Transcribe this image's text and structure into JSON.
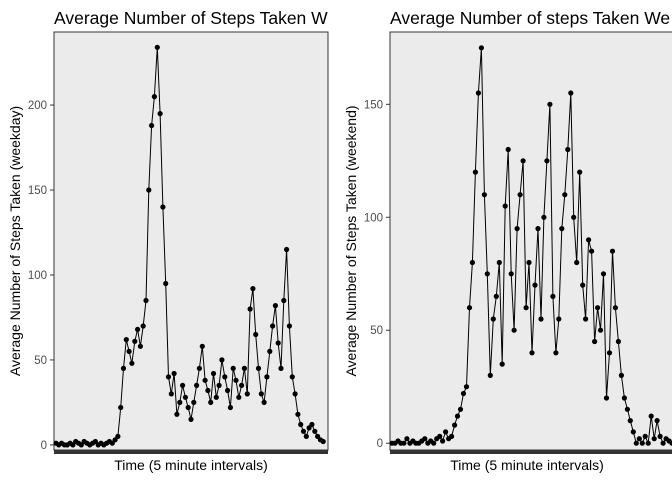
{
  "chart_data": [
    {
      "type": "line",
      "title": "Average Number of Steps Taken W",
      "xlabel": "Time (5 minute intervals)",
      "ylabel": "Average Number of Steps Taken (weekday)",
      "ylim": [
        -3,
        243
      ],
      "yticks": [
        0,
        50,
        100,
        150,
        200
      ],
      "xlim": [
        0,
        288
      ],
      "grid": false,
      "markers": true,
      "series": [
        {
          "x": [
            0,
            3,
            6,
            9,
            12,
            15,
            18,
            21,
            24,
            27,
            30,
            33,
            36,
            39,
            42,
            45,
            48,
            51,
            54,
            57,
            60,
            63,
            66,
            69,
            72,
            75,
            78,
            81,
            84,
            87,
            90,
            93,
            96,
            99,
            102,
            105,
            108,
            111,
            114,
            117,
            120,
            123,
            126,
            129,
            132,
            135,
            138,
            141,
            144,
            147,
            150,
            153,
            156,
            159,
            162,
            165,
            168,
            171,
            174,
            177,
            180,
            183,
            186,
            189,
            192,
            195,
            198,
            201,
            204,
            207,
            210,
            213,
            216,
            219,
            222,
            225,
            228,
            231,
            234,
            237,
            240,
            243,
            246,
            249,
            252,
            255,
            258,
            261,
            264,
            267,
            270,
            273,
            276,
            279,
            282,
            285
          ],
          "values": [
            1,
            0,
            1,
            0,
            0,
            1,
            0,
            2,
            1,
            0,
            2,
            1,
            0,
            1,
            2,
            0,
            1,
            0,
            1,
            2,
            1,
            3,
            5,
            22,
            45,
            62,
            55,
            48,
            61,
            68,
            58,
            70,
            85,
            150,
            188,
            205,
            234,
            195,
            140,
            95,
            40,
            30,
            42,
            18,
            25,
            35,
            28,
            22,
            15,
            25,
            35,
            45,
            58,
            38,
            32,
            25,
            42,
            28,
            35,
            50,
            40,
            32,
            22,
            45,
            38,
            28,
            35,
            45,
            30,
            80,
            92,
            65,
            45,
            30,
            25,
            40,
            55,
            70,
            82,
            60,
            45,
            85,
            115,
            70,
            40,
            30,
            18,
            12,
            8,
            5,
            10,
            12,
            8,
            5,
            3,
            2
          ],
          "marker": "point"
        }
      ]
    },
    {
      "type": "line",
      "title": "Average Number of steps Taken We",
      "xlabel": "Time (5 minute intervals)",
      "ylabel": "Average Number of Steps Taken (weekend)",
      "ylim": [
        -3,
        182
      ],
      "yticks": [
        0,
        50,
        100,
        150
      ],
      "xlim": [
        0,
        288
      ],
      "grid": false,
      "markers": true,
      "series": [
        {
          "x": [
            0,
            3,
            6,
            9,
            12,
            15,
            18,
            21,
            24,
            27,
            30,
            33,
            36,
            39,
            42,
            45,
            48,
            51,
            54,
            57,
            60,
            63,
            66,
            69,
            72,
            75,
            78,
            81,
            84,
            87,
            90,
            93,
            96,
            99,
            102,
            105,
            108,
            111,
            114,
            117,
            120,
            123,
            126,
            129,
            132,
            135,
            138,
            141,
            144,
            147,
            150,
            153,
            156,
            159,
            162,
            165,
            168,
            171,
            174,
            177,
            180,
            183,
            186,
            189,
            192,
            195,
            198,
            201,
            204,
            207,
            210,
            213,
            216,
            219,
            222,
            225,
            228,
            231,
            234,
            237,
            240,
            243,
            246,
            249,
            252,
            255,
            258,
            261,
            264,
            267,
            270,
            273,
            276,
            279,
            282,
            285
          ],
          "values": [
            0,
            0,
            1,
            0,
            0,
            2,
            0,
            1,
            0,
            0,
            1,
            2,
            0,
            1,
            0,
            2,
            3,
            1,
            5,
            2,
            3,
            8,
            12,
            15,
            22,
            25,
            60,
            80,
            120,
            155,
            175,
            110,
            75,
            30,
            55,
            65,
            80,
            35,
            105,
            130,
            75,
            50,
            95,
            110,
            125,
            60,
            80,
            40,
            70,
            95,
            55,
            100,
            125,
            150,
            65,
            40,
            55,
            95,
            110,
            130,
            155,
            100,
            80,
            120,
            70,
            55,
            90,
            85,
            45,
            60,
            50,
            75,
            20,
            40,
            85,
            60,
            45,
            30,
            20,
            15,
            10,
            5,
            0,
            2,
            0,
            3,
            0,
            12,
            2,
            10,
            3,
            0,
            2,
            1,
            0,
            0
          ],
          "marker": "point"
        }
      ]
    }
  ]
}
